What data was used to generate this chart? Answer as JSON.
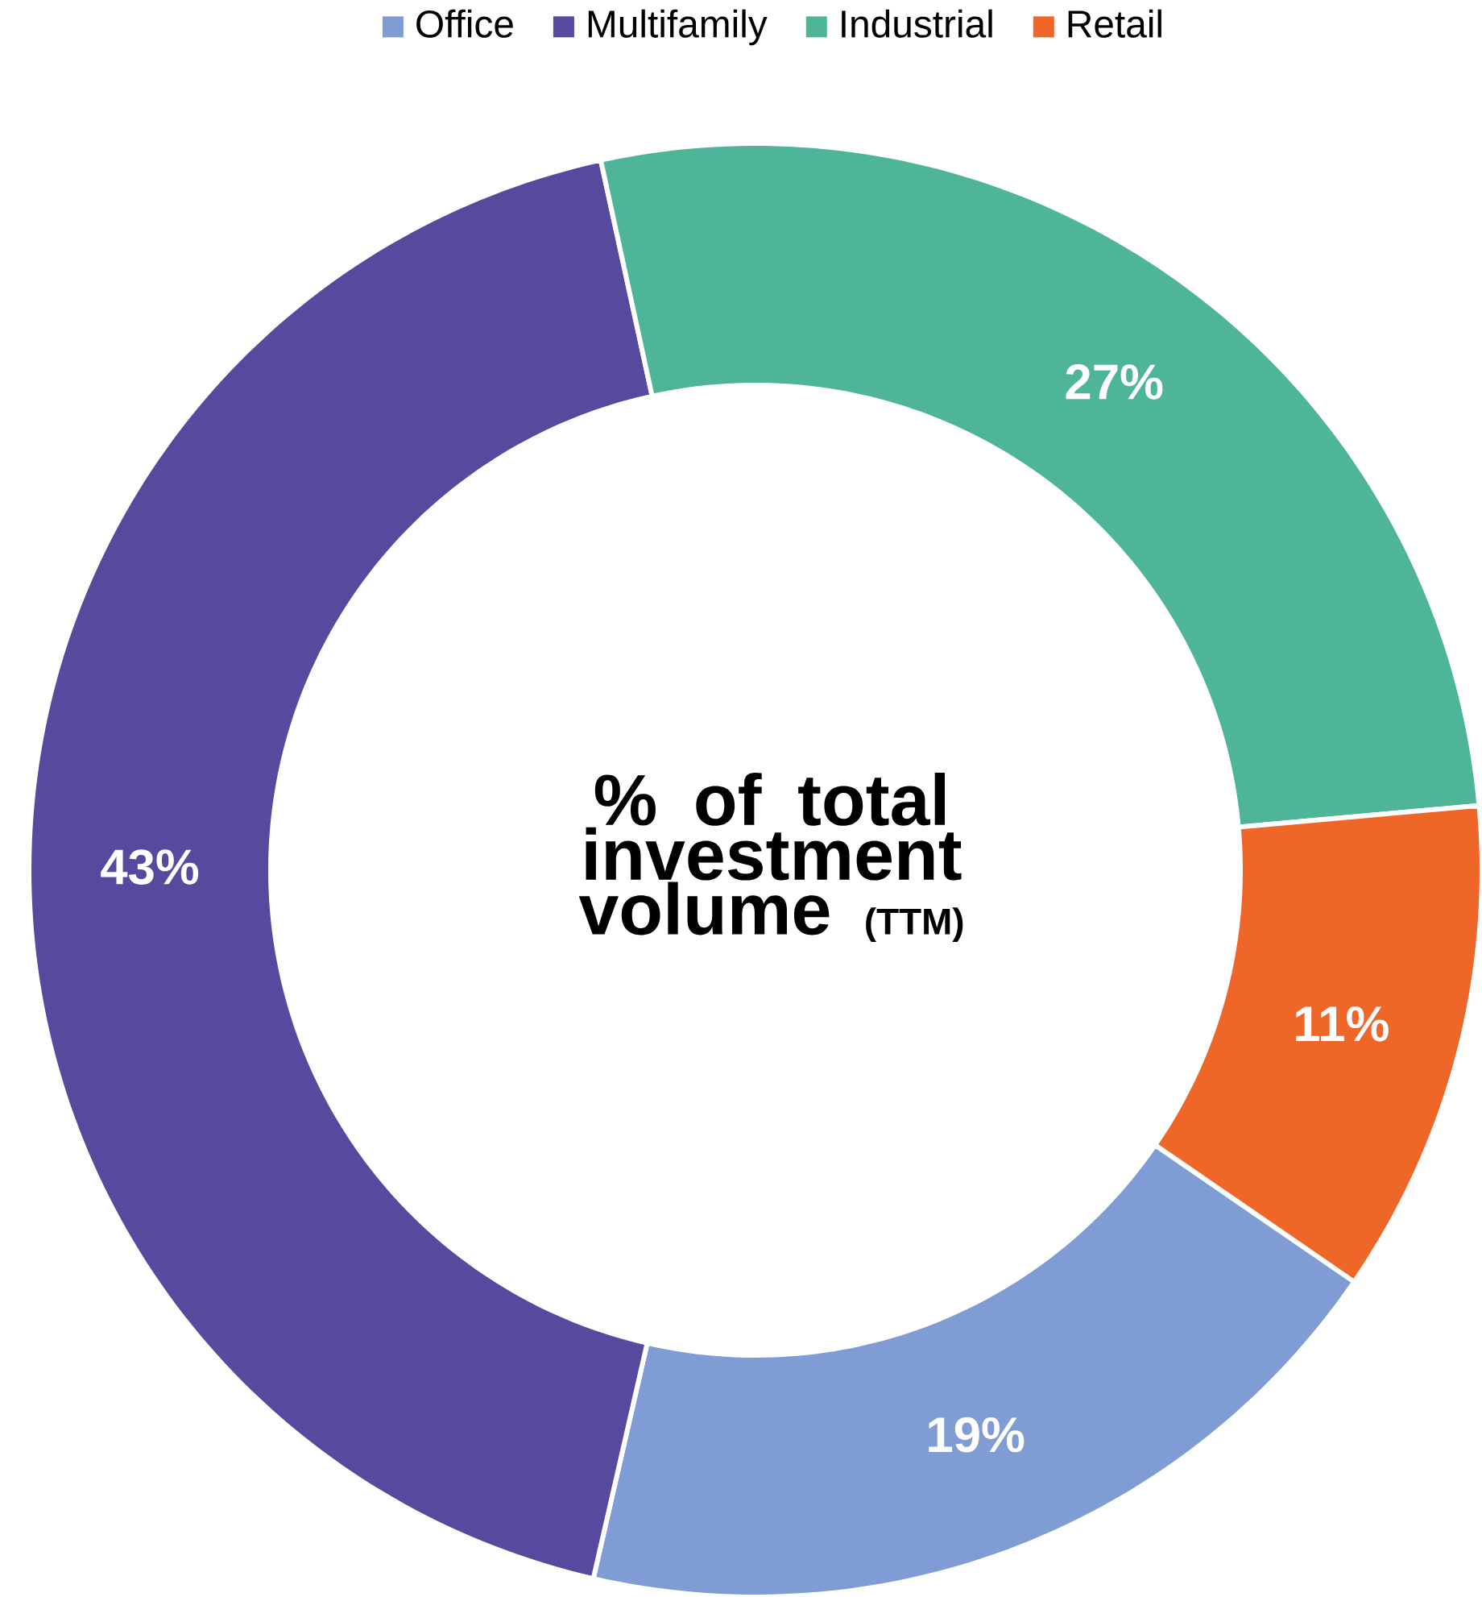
{
  "chart_data": {
    "type": "donut",
    "title": "% of total investment volume",
    "subtitle": "(TTM)",
    "categories": [
      "Office",
      "Multifamily",
      "Industrial",
      "Retail"
    ],
    "values": [
      19,
      43,
      27,
      11
    ],
    "value_labels": [
      "19%",
      "43%",
      "27%",
      "11%"
    ],
    "colors": [
      "#7f9dd4",
      "#574a9e",
      "#4fb598",
      "#ef6629"
    ],
    "legend": "top"
  }
}
